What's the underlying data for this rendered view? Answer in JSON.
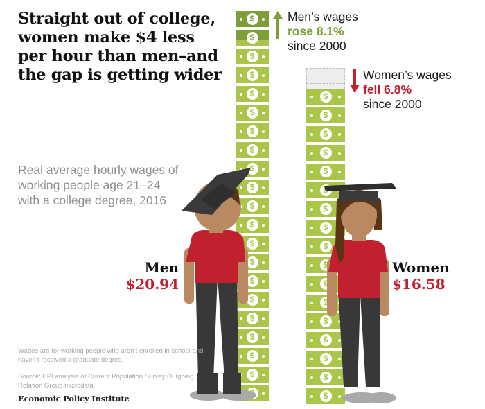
{
  "title": "Straight out of college, women make $4 less per hour than men–and the gap is getting wider",
  "subtitle": "Real average hourly wages of working people age 21–24 with a college degree, 2016",
  "men": {
    "name": "Men",
    "value": "$20.94",
    "change_line1": "Men’s wages",
    "change_line2": "rose 8.1%",
    "change_line3": "since 2000",
    "arrow_icon": "arrow-up-icon"
  },
  "women": {
    "name": "Women",
    "value": "$16.58",
    "change_line1": "Women’s wages",
    "change_line2": "fell 6.8%",
    "change_line3": "since 2000",
    "arrow_icon": "arrow-down-icon"
  },
  "note": "Wages are for working people who aren’t enrolled in school and haven’t received a graduate degree.",
  "source": "Source: EPI analysis of Current Population Survey Outgoing Rotation Group microdata",
  "brand": "Economic Policy Institute",
  "colors": {
    "bill_green": "#a9c64a",
    "bill_dark_green": "#7e9e3a",
    "accent_red": "#c1202f",
    "shirt_red": "#c1202f",
    "pants": "#383838",
    "skin": "#b98a62",
    "hair": "#5a3515",
    "cap": "#3a3a3a",
    "shoes": "#a9a9a9",
    "ghost_bill": "#eeeeee"
  },
  "chart_data": {
    "type": "bar",
    "title": "Straight out of college, women make $4 less per hour than men–and the gap is getting wider",
    "subtitle": "Real average hourly wages of working people age 21–24 with a college degree, 2016",
    "categories": [
      "Men",
      "Women"
    ],
    "values": [
      20.94,
      16.58
    ],
    "unit": "USD per hour",
    "change_since_2000_pct": [
      8.1,
      -6.8
    ],
    "annotations": [
      "Men’s wages rose 8.1% since 2000",
      "Women’s wages fell 6.8% since 2000"
    ],
    "representation": "stacked dollar-bill pictograph",
    "xlabel": "",
    "ylabel": ""
  }
}
